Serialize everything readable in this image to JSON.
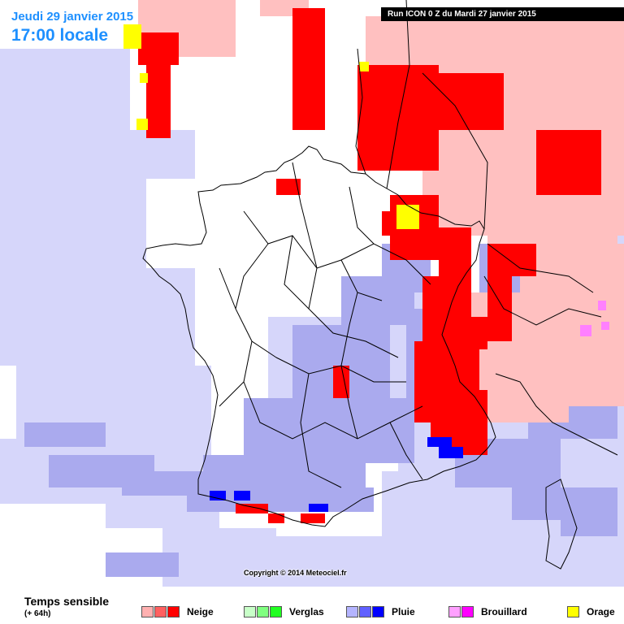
{
  "header": {
    "date": "Jeudi 29 janvier 2015",
    "time": "17:00 locale",
    "run": "Run ICON 0 Z du Mardi 27 janvier 2015"
  },
  "footer": {
    "copyright": "Copyright © 2014 Meteociel.fr"
  },
  "legend": {
    "title": "Temps sensible",
    "subtitle": "(+ 64h)",
    "items": [
      {
        "label": "Neige",
        "colors": [
          "#ffb0b0",
          "#ff6060",
          "#ff0000"
        ]
      },
      {
        "label": "Verglas",
        "colors": [
          "#c8ffc8",
          "#80ff80",
          "#20ff20"
        ]
      },
      {
        "label": "Pluie",
        "colors": [
          "#b4b4ff",
          "#6060ff",
          "#0000ff"
        ]
      },
      {
        "label": "Brouillard",
        "colors": [
          "#ffa0ff",
          "#ff00ff"
        ]
      },
      {
        "label": "Orage",
        "colors": [
          "#ffff00"
        ]
      }
    ]
  },
  "colors": {
    "rain_light": "#d6d6fa",
    "rain_medium": "#aaaaee",
    "rain_heavy": "#0000ff",
    "snow_light": "#ffc0c0",
    "snow_heavy": "#ff0000",
    "storm": "#ffff00",
    "fog": "#ff80ff",
    "borders": "#000000"
  }
}
